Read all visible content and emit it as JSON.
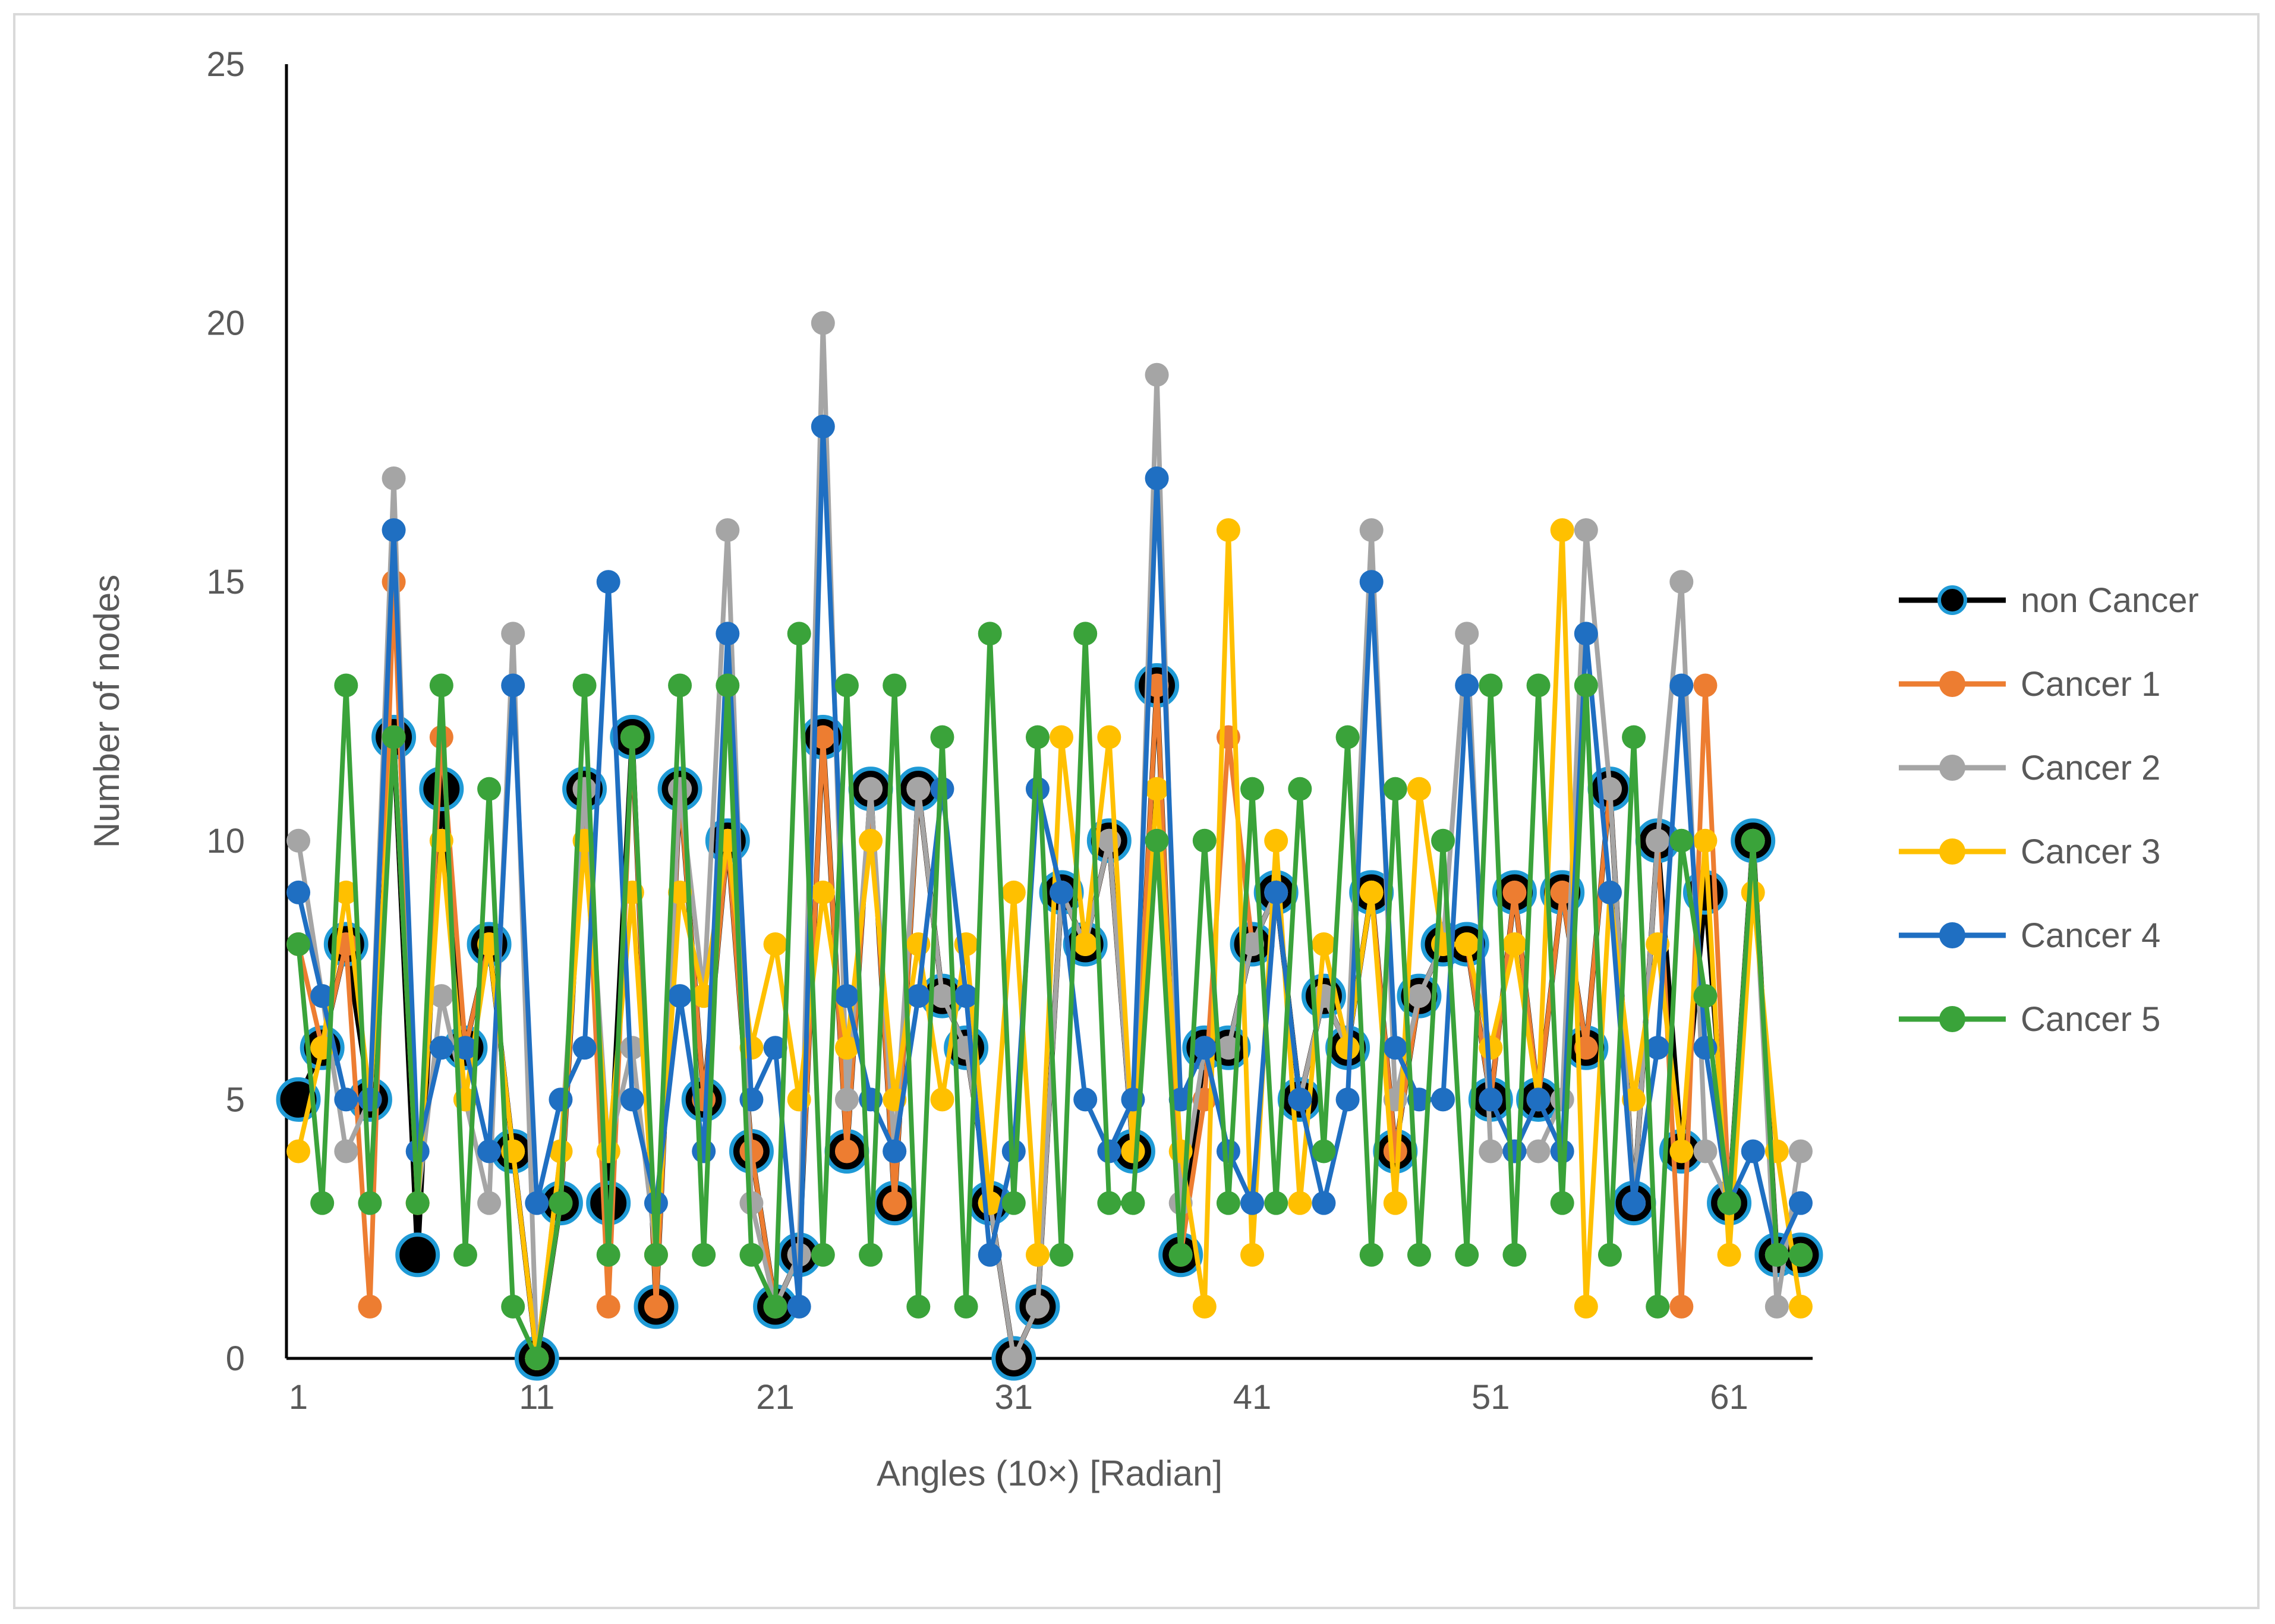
{
  "chart_data": {
    "type": "line",
    "title": "",
    "xlabel": "Angles (10×) [Radian]",
    "ylabel": "Number of nodes",
    "xlim": [
      0.5,
      64.5
    ],
    "ylim": [
      0,
      25
    ],
    "y_ticks": [
      "0",
      "5",
      "10",
      "15",
      "20",
      "25"
    ],
    "x_ticks": [
      "1",
      "11",
      "21",
      "31",
      "41",
      "51",
      "61"
    ],
    "x": [
      1,
      2,
      3,
      4,
      5,
      6,
      7,
      8,
      9,
      10,
      11,
      12,
      13,
      14,
      15,
      16,
      17,
      18,
      19,
      20,
      21,
      22,
      23,
      24,
      25,
      26,
      27,
      28,
      29,
      30,
      31,
      32,
      33,
      34,
      35,
      36,
      37,
      38,
      39,
      40,
      41,
      42,
      43,
      44,
      45,
      46,
      47,
      48,
      49,
      50,
      51,
      52,
      53,
      54,
      55,
      56,
      57,
      58,
      59,
      60,
      61,
      62,
      63,
      64
    ],
    "legend_position": "right",
    "series": [
      {
        "name": "non Cancer",
        "color": "#000000",
        "marker_edge": "#1f9ad6",
        "values": [
          5,
          6,
          8,
          5,
          12,
          2,
          11,
          6,
          8,
          4,
          0,
          3,
          11,
          3,
          12,
          1,
          11,
          5,
          10,
          4,
          1,
          2,
          12,
          4,
          11,
          3,
          11,
          7,
          6,
          3,
          0,
          1,
          9,
          8,
          10,
          4,
          13,
          2,
          6,
          6,
          8,
          9,
          5,
          7,
          6,
          9,
          4,
          7,
          8,
          8,
          5,
          9,
          5,
          9,
          6,
          11,
          3,
          10,
          4,
          9,
          3,
          10,
          2,
          2
        ]
      },
      {
        "name": "Cancer 1",
        "color": "#ed7d31",
        "values": [
          8,
          6,
          8,
          1,
          15,
          3,
          12,
          6,
          8,
          4,
          0,
          3,
          11,
          1,
          12,
          1,
          11,
          5,
          10,
          4,
          1,
          2,
          12,
          4,
          11,
          3,
          11,
          7,
          6,
          3,
          0,
          1,
          9,
          8,
          10,
          4,
          13,
          2,
          5,
          12,
          8,
          9,
          5,
          7,
          6,
          9,
          4,
          7,
          8,
          8,
          5,
          9,
          5,
          9,
          6,
          11,
          3,
          10,
          1,
          13,
          3,
          10,
          2,
          2
        ]
      },
      {
        "name": "Cancer 2",
        "color": "#a5a5a5",
        "values": [
          10,
          7,
          4,
          5,
          17,
          3,
          7,
          5,
          3,
          14,
          0,
          4,
          11,
          4,
          6,
          2,
          11,
          7,
          16,
          3,
          1,
          2,
          20,
          5,
          11,
          4,
          11,
          7,
          6,
          3,
          0,
          1,
          9,
          8,
          10,
          4,
          19,
          3,
          6,
          6,
          8,
          9,
          5,
          7,
          6,
          16,
          5,
          7,
          8,
          14,
          4,
          4,
          4,
          5,
          16,
          11,
          3,
          10,
          15,
          4,
          3,
          10,
          1,
          4
        ]
      },
      {
        "name": "Cancer 3",
        "color": "#ffc000",
        "values": [
          4,
          6,
          9,
          5,
          12,
          3,
          10,
          5,
          8,
          4,
          0,
          4,
          10,
          4,
          9,
          2,
          9,
          7,
          10,
          6,
          8,
          5,
          9,
          6,
          10,
          5,
          8,
          5,
          8,
          3,
          9,
          2,
          12,
          8,
          12,
          4,
          11,
          4,
          1,
          16,
          2,
          10,
          3,
          8,
          6,
          9,
          3,
          11,
          8,
          8,
          6,
          8,
          5,
          16,
          1,
          9,
          5,
          8,
          4,
          10,
          2,
          9,
          4,
          1
        ]
      },
      {
        "name": "Cancer 4",
        "color": "#1f6fc2",
        "values": [
          9,
          7,
          5,
          5,
          16,
          4,
          6,
          6,
          4,
          13,
          3,
          5,
          6,
          15,
          5,
          3,
          7,
          4,
          14,
          5,
          6,
          1,
          18,
          7,
          5,
          4,
          7,
          11,
          7,
          2,
          4,
          11,
          9,
          5,
          4,
          5,
          17,
          5,
          6,
          4,
          3,
          9,
          5,
          3,
          5,
          15,
          6,
          5,
          5,
          13,
          5,
          4,
          5,
          4,
          14,
          9,
          3,
          6,
          13,
          6,
          3,
          4,
          2,
          3
        ]
      },
      {
        "name": "Cancer 5",
        "color": "#3aa33a",
        "values": [
          8,
          3,
          13,
          3,
          12,
          3,
          13,
          2,
          11,
          1,
          0,
          3,
          13,
          2,
          12,
          2,
          13,
          2,
          13,
          2,
          1,
          14,
          2,
          13,
          2,
          13,
          1,
          12,
          1,
          14,
          3,
          12,
          2,
          14,
          3,
          3,
          10,
          2,
          10,
          3,
          11,
          3,
          11,
          4,
          12,
          2,
          11,
          2,
          10,
          2,
          13,
          2,
          13,
          3,
          13,
          2,
          12,
          1,
          10,
          7,
          3,
          10,
          2,
          2
        ]
      }
    ]
  }
}
